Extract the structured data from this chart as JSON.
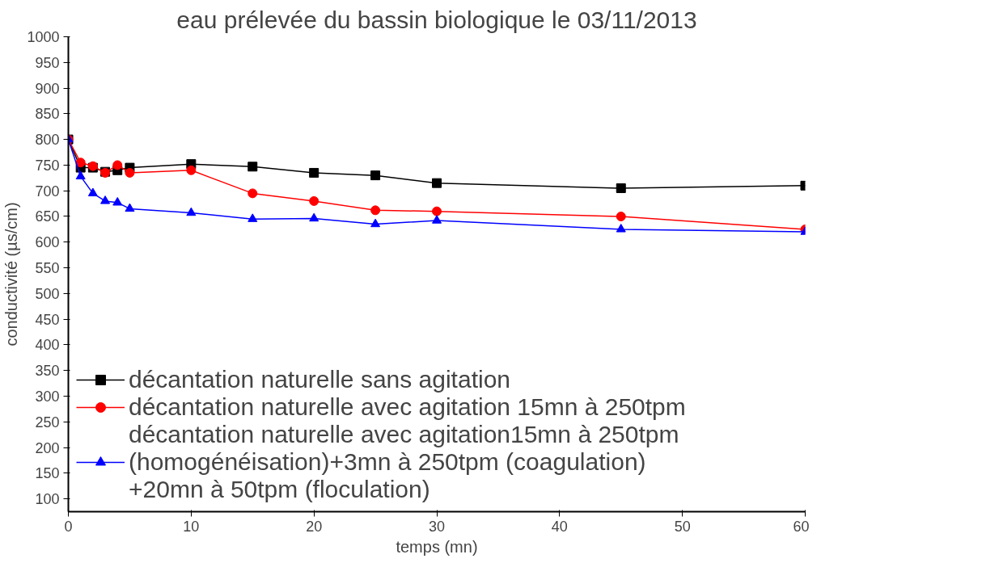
{
  "chart_data": {
    "type": "line",
    "title": "eau prélevée du bassin biologique le 03/11/2013",
    "xlabel": "temps (mn)",
    "ylabel": "conductivité (µs/cm)",
    "x": [
      0,
      1,
      2,
      3,
      4,
      5,
      10,
      15,
      20,
      25,
      30,
      45,
      60
    ],
    "series": [
      {
        "name": "décantation naturelle sans agitation",
        "color": "#000000",
        "marker": "square",
        "values": [
          800,
          745,
          745,
          737,
          740,
          745,
          752,
          747,
          735,
          730,
          715,
          705,
          710
        ]
      },
      {
        "name": "décantation naturelle avec agitation 15mn à 250tpm",
        "color": "#ff0000",
        "marker": "circle",
        "values": [
          800,
          755,
          748,
          735,
          750,
          735,
          740,
          695,
          680,
          662,
          660,
          650,
          625
        ]
      },
      {
        "name": "décantation naturelle avec agitation15mn à 250tpm\n(homogénéisation)+3mn à 250tpm (coagulation)\n+20mn à 50tpm (floculation)",
        "color": "#0000ff",
        "marker": "triangle",
        "values": [
          800,
          728,
          695,
          680,
          677,
          665,
          657,
          645,
          646,
          635,
          642,
          625,
          620
        ]
      }
    ],
    "xlim": [
      0,
      60
    ],
    "xticks": [
      0,
      10,
      20,
      30,
      40,
      50,
      60
    ],
    "ylim": [
      75,
      1000
    ],
    "yticks": [
      100,
      150,
      200,
      250,
      300,
      350,
      400,
      450,
      500,
      550,
      600,
      650,
      700,
      750,
      800,
      850,
      900,
      950,
      1000
    ],
    "grid": false,
    "legend": "bottom left",
    "line_style": "solid"
  }
}
